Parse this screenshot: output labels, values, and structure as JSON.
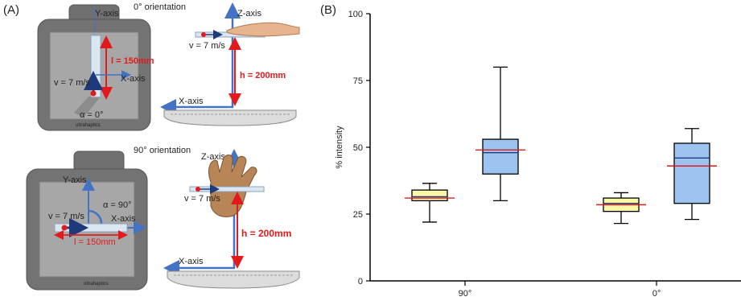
{
  "panel_a": {
    "label": "(A)",
    "top": {
      "orientation": "0° orientation",
      "y_axis": "Y-axis",
      "x_axis": "X-axis",
      "z_axis": "Z-axis",
      "length": "l = 150mm",
      "velocity_left": "v = 7 m/s",
      "velocity_right": "v = 7 m/s",
      "angle": "α = 0°",
      "height": "h = 200mm",
      "x_axis_side": "X-axis",
      "brand": "ultrahaptics"
    },
    "bottom": {
      "orientation": "90° orientation",
      "y_axis": "Y-axis",
      "x_axis": "X-axis",
      "z_axis": "Z-axis",
      "length": "l = 150mm",
      "velocity_left": "v = 7 m/s",
      "velocity_right": "v = 7 m/s",
      "angle": "α = 90°",
      "height": "h = 200mm",
      "x_axis_side": "X-axis",
      "brand": "ultrahaptics"
    }
  },
  "panel_b": {
    "label": "(B)"
  },
  "colors": {
    "axis_blue": "#4472c4",
    "measure_red": "#e31a1c",
    "box_yellow": "#fbf7a8",
    "box_blue": "#9dc3f0",
    "mean_line": "#e31a1c",
    "device_gray": "#6b6b6b"
  },
  "chart_data": {
    "type": "box",
    "ylabel": "% intensity",
    "xlabel": "",
    "ylim": [
      0,
      100
    ],
    "yticks": [
      "0",
      "25",
      "50",
      "75",
      "100"
    ],
    "categories": [
      "90°",
      "0°"
    ],
    "series": [
      {
        "color": "#fbf7a8",
        "boxes": [
          {
            "category": "90°",
            "min": 22,
            "q1": 30,
            "median": 31.5,
            "q3": 34,
            "max": 36.5,
            "mean": 31
          },
          {
            "category": "0°",
            "min": 21.5,
            "q1": 26,
            "median": 29,
            "q3": 31,
            "max": 33,
            "mean": 28.5
          }
        ]
      },
      {
        "color": "#9dc3f0",
        "boxes": [
          {
            "category": "90°",
            "min": 30,
            "q1": 40,
            "median": 48,
            "q3": 53,
            "max": 80,
            "mean": 49
          },
          {
            "category": "0°",
            "min": 23,
            "q1": 29,
            "median": 46,
            "q3": 51.5,
            "max": 57,
            "mean": 43
          }
        ]
      }
    ]
  }
}
